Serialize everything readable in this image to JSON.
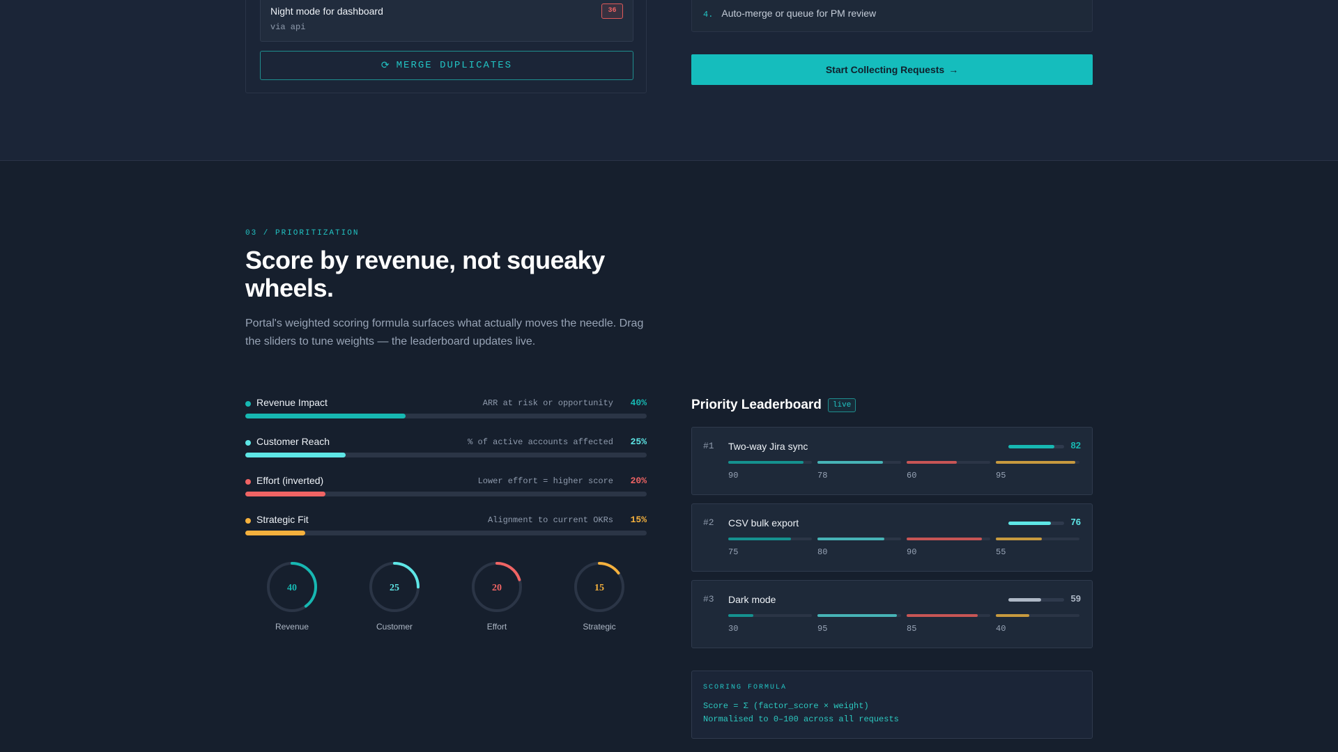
{
  "intake": {
    "request": {
      "title": "Night mode for dashboard",
      "source": "via api",
      "votes": "36"
    },
    "merge_button": {
      "icon": "refresh-icon",
      "glyph": "⟳",
      "label": "MERGE DUPLICATES"
    }
  },
  "steps": {
    "step4": {
      "number": "4.",
      "text": "Auto-merge or queue for PM review"
    },
    "start_button": {
      "label": "Start Collecting Requests",
      "arrow": "→"
    }
  },
  "prioritization": {
    "eyebrow": "03 / PRIORITIZATION",
    "title": "Score by revenue, not squeaky wheels.",
    "description": "Portal's weighted scoring formula surfaces what actually moves the needle. Drag the sliders to tune weights — the leaderboard updates live.",
    "sliders": [
      {
        "name": "Revenue Impact",
        "hint": "ARR at risk or opportunity",
        "percent_label": "40%",
        "value": 40,
        "color": "#17b8b2"
      },
      {
        "name": "Customer Reach",
        "hint": "% of active accounts affected",
        "percent_label": "25%",
        "value": 25,
        "color": "#5ee6e6"
      },
      {
        "name": "Effort (inverted)",
        "hint": "Lower effort = higher score",
        "percent_label": "20%",
        "value": 20,
        "color": "#f06464"
      },
      {
        "name": "Strategic Fit",
        "hint": "Alignment to current OKRs",
        "percent_label": "15%",
        "value": 15,
        "color": "#f5b13d"
      }
    ],
    "gauges": [
      {
        "value": "40",
        "label": "Revenue",
        "color": "#17b8b2"
      },
      {
        "value": "25",
        "label": "Customer",
        "color": "#5ee6e6"
      },
      {
        "value": "20",
        "label": "Effort",
        "color": "#f06464"
      },
      {
        "value": "15",
        "label": "Strategic",
        "color": "#f5b13d"
      }
    ]
  },
  "leaderboard": {
    "title": "Priority Leaderboard",
    "badge": "live",
    "factor_colors": [
      "#15918f",
      "#47b3b6",
      "#c75555",
      "#c79a3f"
    ],
    "items": [
      {
        "rank": "#1",
        "name": "Two-way Jira sync",
        "score": "82",
        "score_color": "#17b8b2",
        "factors": [
          "90",
          "78",
          "60",
          "95"
        ]
      },
      {
        "rank": "#2",
        "name": "CSV bulk export",
        "score": "76",
        "score_color": "#5ee6e6",
        "factors": [
          "75",
          "80",
          "90",
          "55"
        ]
      },
      {
        "rank": "#3",
        "name": "Dark mode",
        "score": "59",
        "score_color": "#aeb8c6",
        "factors": [
          "30",
          "95",
          "85",
          "40"
        ]
      }
    ],
    "formula": {
      "title": "SCORING FORMULA",
      "line1": "Score = Σ (factor_score × weight)",
      "line2": "Normalised to 0–100 across all requests"
    }
  }
}
